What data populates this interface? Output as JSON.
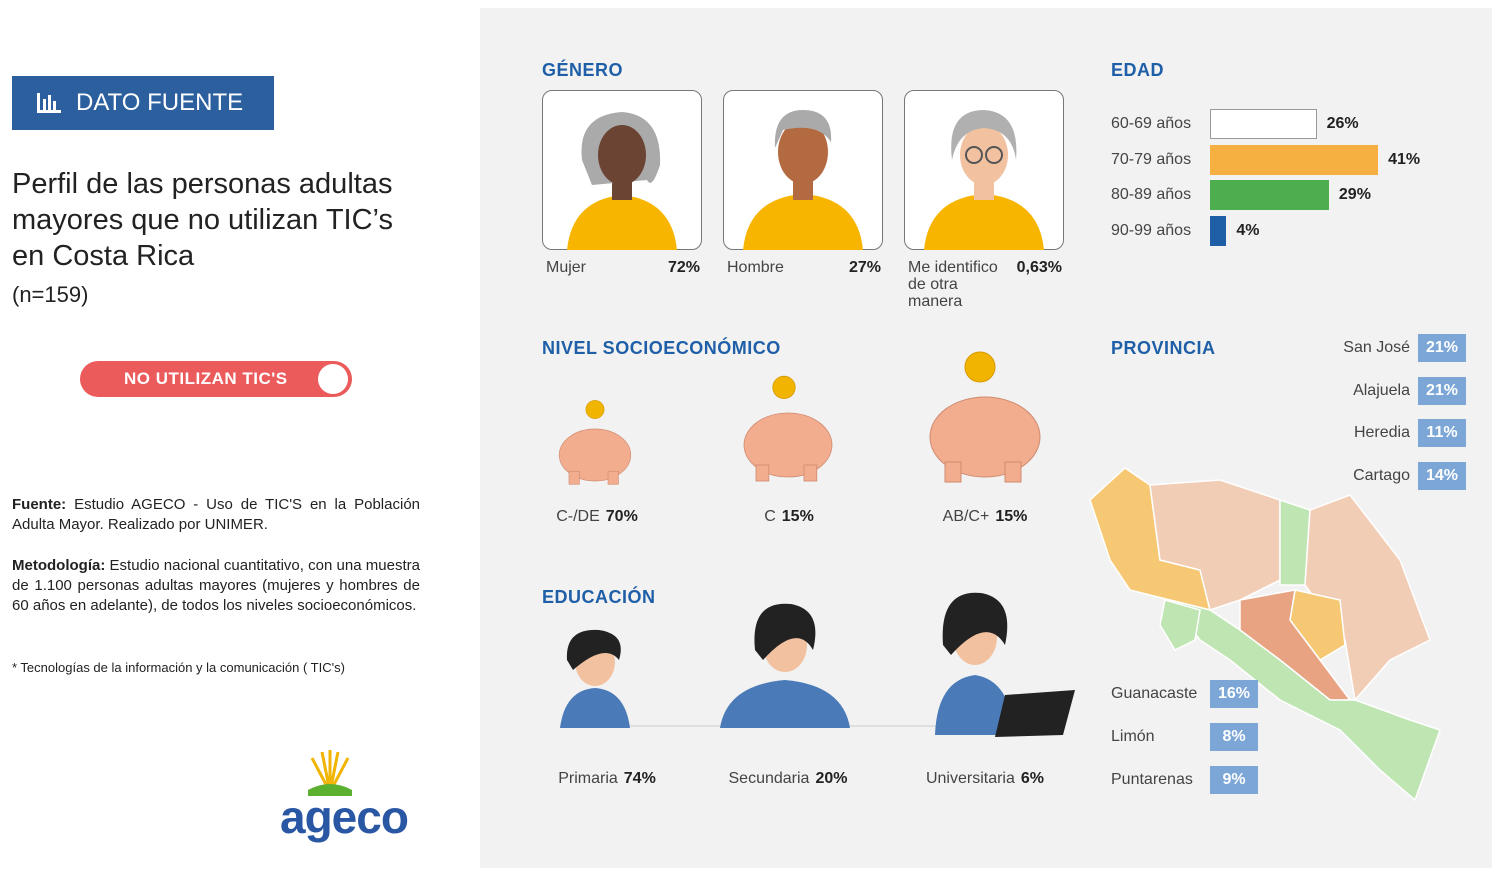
{
  "sidebar": {
    "badge": "DATO FUENTE",
    "title": "Perfil de las personas adultas mayores que no utilizan TIC’s en Costa Rica",
    "sample": "(n=159)",
    "toggle": "NO UTILIZAN TIC'S",
    "source_label": "Fuente:",
    "source": "Estudio AGECO - Uso de TIC'S en la Población Adulta Mayor. Realizado por UNIMER.",
    "method_label": "Metodología:",
    "method": "Estudio nacional cuantitativo, con una muestra de 1.100 personas adultas mayores (mujeres y hombres de 60 años en adelante), de todos los niveles socioeconómicos.",
    "footnote": "* Tecnologías de la información y la comunicación ( TIC's)",
    "logo": "ageco"
  },
  "gender": {
    "title": "GÉNERO",
    "items": [
      {
        "label": "Mujer",
        "value": "72%"
      },
      {
        "label": "Hombre",
        "value": "27%"
      },
      {
        "label": "Me identifico de otra manera",
        "value": "0,63%"
      }
    ]
  },
  "age": {
    "title": "EDAD",
    "items": [
      {
        "label": "60-69 años",
        "value": 26,
        "value_label": "26%",
        "color": "#ffffff"
      },
      {
        "label": "70-79 años",
        "value": 41,
        "value_label": "41%",
        "color": "#f5b041"
      },
      {
        "label": "80-89 años",
        "value": 29,
        "value_label": "29%",
        "color": "#4cae4c"
      },
      {
        "label": "90-99 años",
        "value": 4,
        "value_label": "4%",
        "color": "#1f5fa8"
      }
    ]
  },
  "socio": {
    "title": "NIVEL SOCIOECONÓMICO",
    "items": [
      {
        "label": "C-/DE",
        "value": "70%"
      },
      {
        "label": "C",
        "value": "15%"
      },
      {
        "label": "AB/C+",
        "value": "15%"
      }
    ]
  },
  "education": {
    "title": "EDUCACIÓN",
    "items": [
      {
        "label": "Primaria",
        "value": "74%"
      },
      {
        "label": "Secundaria",
        "value": "20%"
      },
      {
        "label": "Universitaria",
        "value": "6%"
      }
    ]
  },
  "province": {
    "title": "PROVINCIA",
    "items": [
      {
        "label": "San José",
        "value": "21%"
      },
      {
        "label": "Alajuela",
        "value": "21%"
      },
      {
        "label": "Heredia",
        "value": "11%"
      },
      {
        "label": "Cartago",
        "value": "14%"
      },
      {
        "label": "Guanacaste",
        "value": "16%"
      },
      {
        "label": "Limón",
        "value": "8%"
      },
      {
        "label": "Puntarenas",
        "value": "9%"
      }
    ]
  }
}
